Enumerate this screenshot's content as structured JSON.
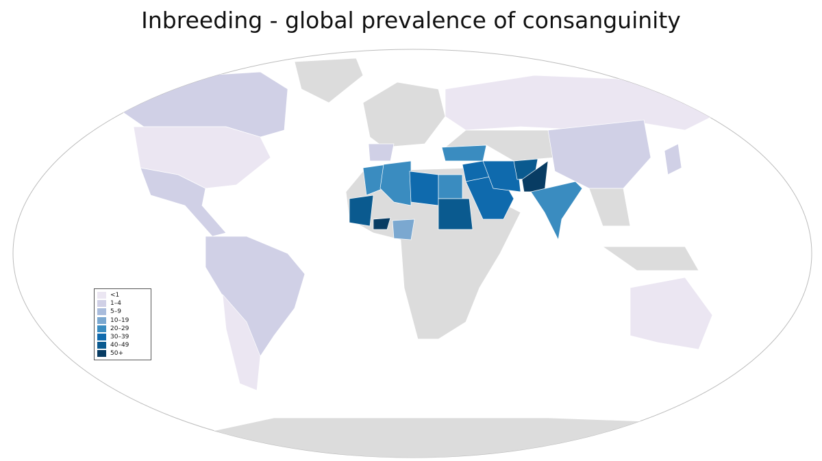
{
  "title": "Inbreeding -  global prevalence of consanguinity",
  "legend": {
    "items": [
      {
        "label": "<1",
        "color": "#ebe6f2"
      },
      {
        "label": "1–4",
        "color": "#d0d0e6"
      },
      {
        "label": "5–9",
        "color": "#a9bcdc"
      },
      {
        "label": "10–19",
        "color": "#7ba8d0"
      },
      {
        "label": "20–29",
        "color": "#3a8cc0"
      },
      {
        "label": "30–39",
        "color": "#0f6aad"
      },
      {
        "label": "40–49",
        "color": "#0a5a8f"
      },
      {
        "label": "50+",
        "color": "#083c63"
      }
    ]
  }
}
